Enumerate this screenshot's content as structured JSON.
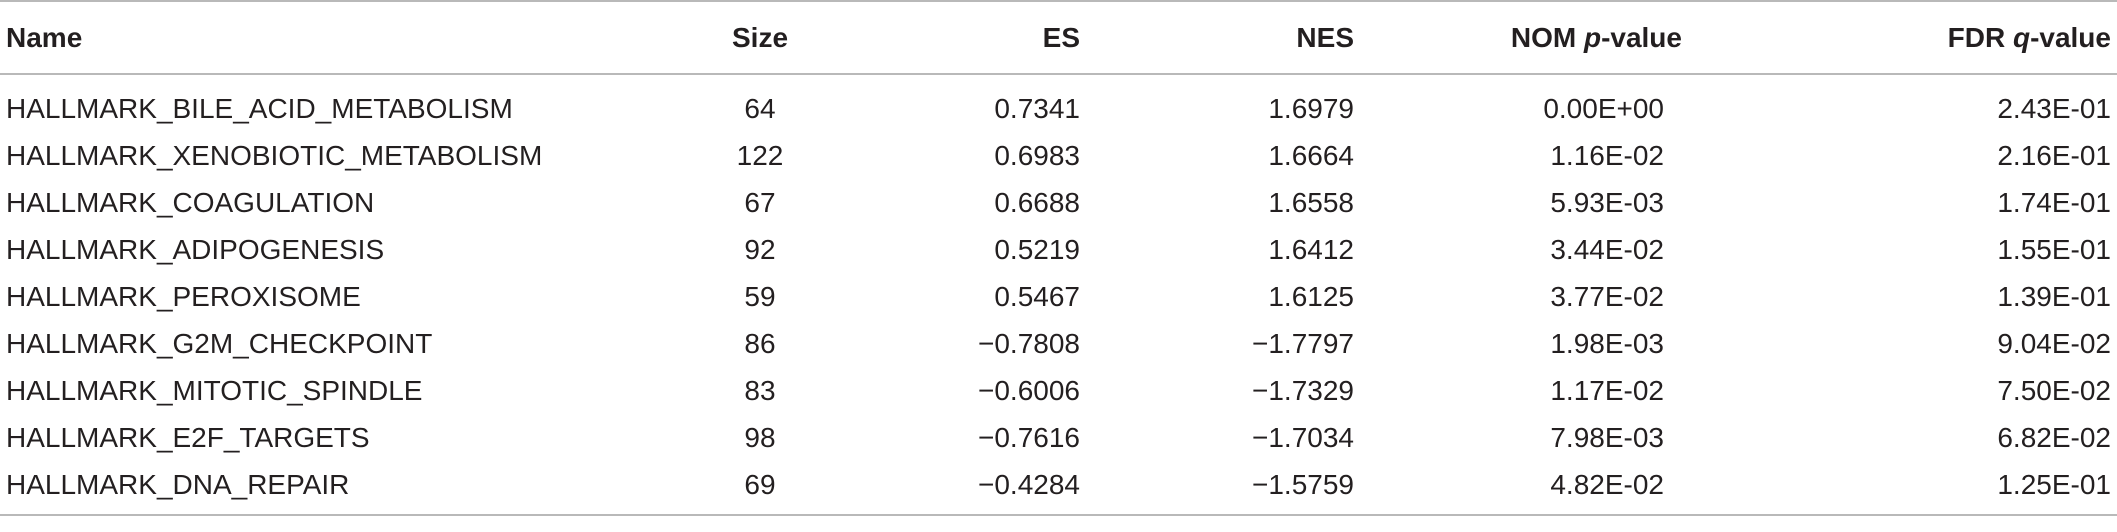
{
  "table": {
    "headers": {
      "name": "Name",
      "size": "Size",
      "es": "ES",
      "nes": "NES",
      "nom_prefix": "NOM ",
      "nom_italic": "p",
      "nom_suffix": "-value",
      "fdr_prefix": "FDR ",
      "fdr_italic": "q",
      "fdr_suffix": "-value"
    },
    "rows": [
      {
        "name": "HALLMARK_BILE_ACID_METABOLISM",
        "size": "64",
        "es": "0.7341",
        "nes": "1.6979",
        "nom": "0.00E+00",
        "fdr": "2.43E-01"
      },
      {
        "name": "HALLMARK_XENOBIOTIC_METABOLISM",
        "size": "122",
        "es": "0.6983",
        "nes": "1.6664",
        "nom": "1.16E-02",
        "fdr": "2.16E-01"
      },
      {
        "name": "HALLMARK_COAGULATION",
        "size": "67",
        "es": "0.6688",
        "nes": "1.6558",
        "nom": "5.93E-03",
        "fdr": "1.74E-01"
      },
      {
        "name": "HALLMARK_ADIPOGENESIS",
        "size": "92",
        "es": "0.5219",
        "nes": "1.6412",
        "nom": "3.44E-02",
        "fdr": "1.55E-01"
      },
      {
        "name": "HALLMARK_PEROXISOME",
        "size": "59",
        "es": "0.5467",
        "nes": "1.6125",
        "nom": "3.77E-02",
        "fdr": "1.39E-01"
      },
      {
        "name": "HALLMARK_G2M_CHECKPOINT",
        "size": "86",
        "es": "−0.7808",
        "nes": "−1.7797",
        "nom": "1.98E-03",
        "fdr": "9.04E-02"
      },
      {
        "name": "HALLMARK_MITOTIC_SPINDLE",
        "size": "83",
        "es": "−0.6006",
        "nes": "−1.7329",
        "nom": "1.17E-02",
        "fdr": "7.50E-02"
      },
      {
        "name": "HALLMARK_E2F_TARGETS",
        "size": "98",
        "es": "−0.7616",
        "nes": "−1.7034",
        "nom": "7.98E-03",
        "fdr": "6.82E-02"
      },
      {
        "name": "HALLMARK_DNA_REPAIR",
        "size": "69",
        "es": "−0.4284",
        "nes": "−1.5759",
        "nom": "4.82E-02",
        "fdr": "1.25E-01"
      }
    ]
  }
}
